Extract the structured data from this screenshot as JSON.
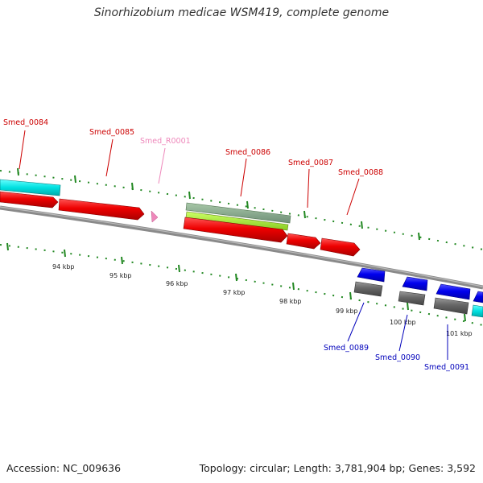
{
  "title": "Sinorhizobium medicae WSM419, complete genome",
  "footer": {
    "accession": "Accession: NC_009636",
    "summary": "Topology: circular; Length: 3,781,904 bp; Genes: 3,592"
  },
  "colors": {
    "cds_forward": "#ee0000",
    "cds_reverse": "#0000ee",
    "gene_gray": "#666666",
    "rna": "#ee88bb",
    "repeat_cyan": "#00dddd",
    "green_feature": "#99ee33",
    "tick_green": "#228822"
  },
  "genes_top": [
    {
      "name": "Smed_0084"
    },
    {
      "name": "Smed_0085"
    },
    {
      "name": "Smed_R0001"
    },
    {
      "name": "Smed_0086"
    },
    {
      "name": "Smed_0087"
    },
    {
      "name": "Smed_0088"
    }
  ],
  "genes_bottom": [
    {
      "name": "Smed_0089"
    },
    {
      "name": "Smed_0090"
    },
    {
      "name": "Smed_0091"
    }
  ],
  "scale_labels": [
    "94 kbp",
    "95 kbp",
    "96 kbp",
    "97 kbp",
    "98 kbp",
    "99 kbp",
    "100 kbp",
    "101 kbp"
  ]
}
